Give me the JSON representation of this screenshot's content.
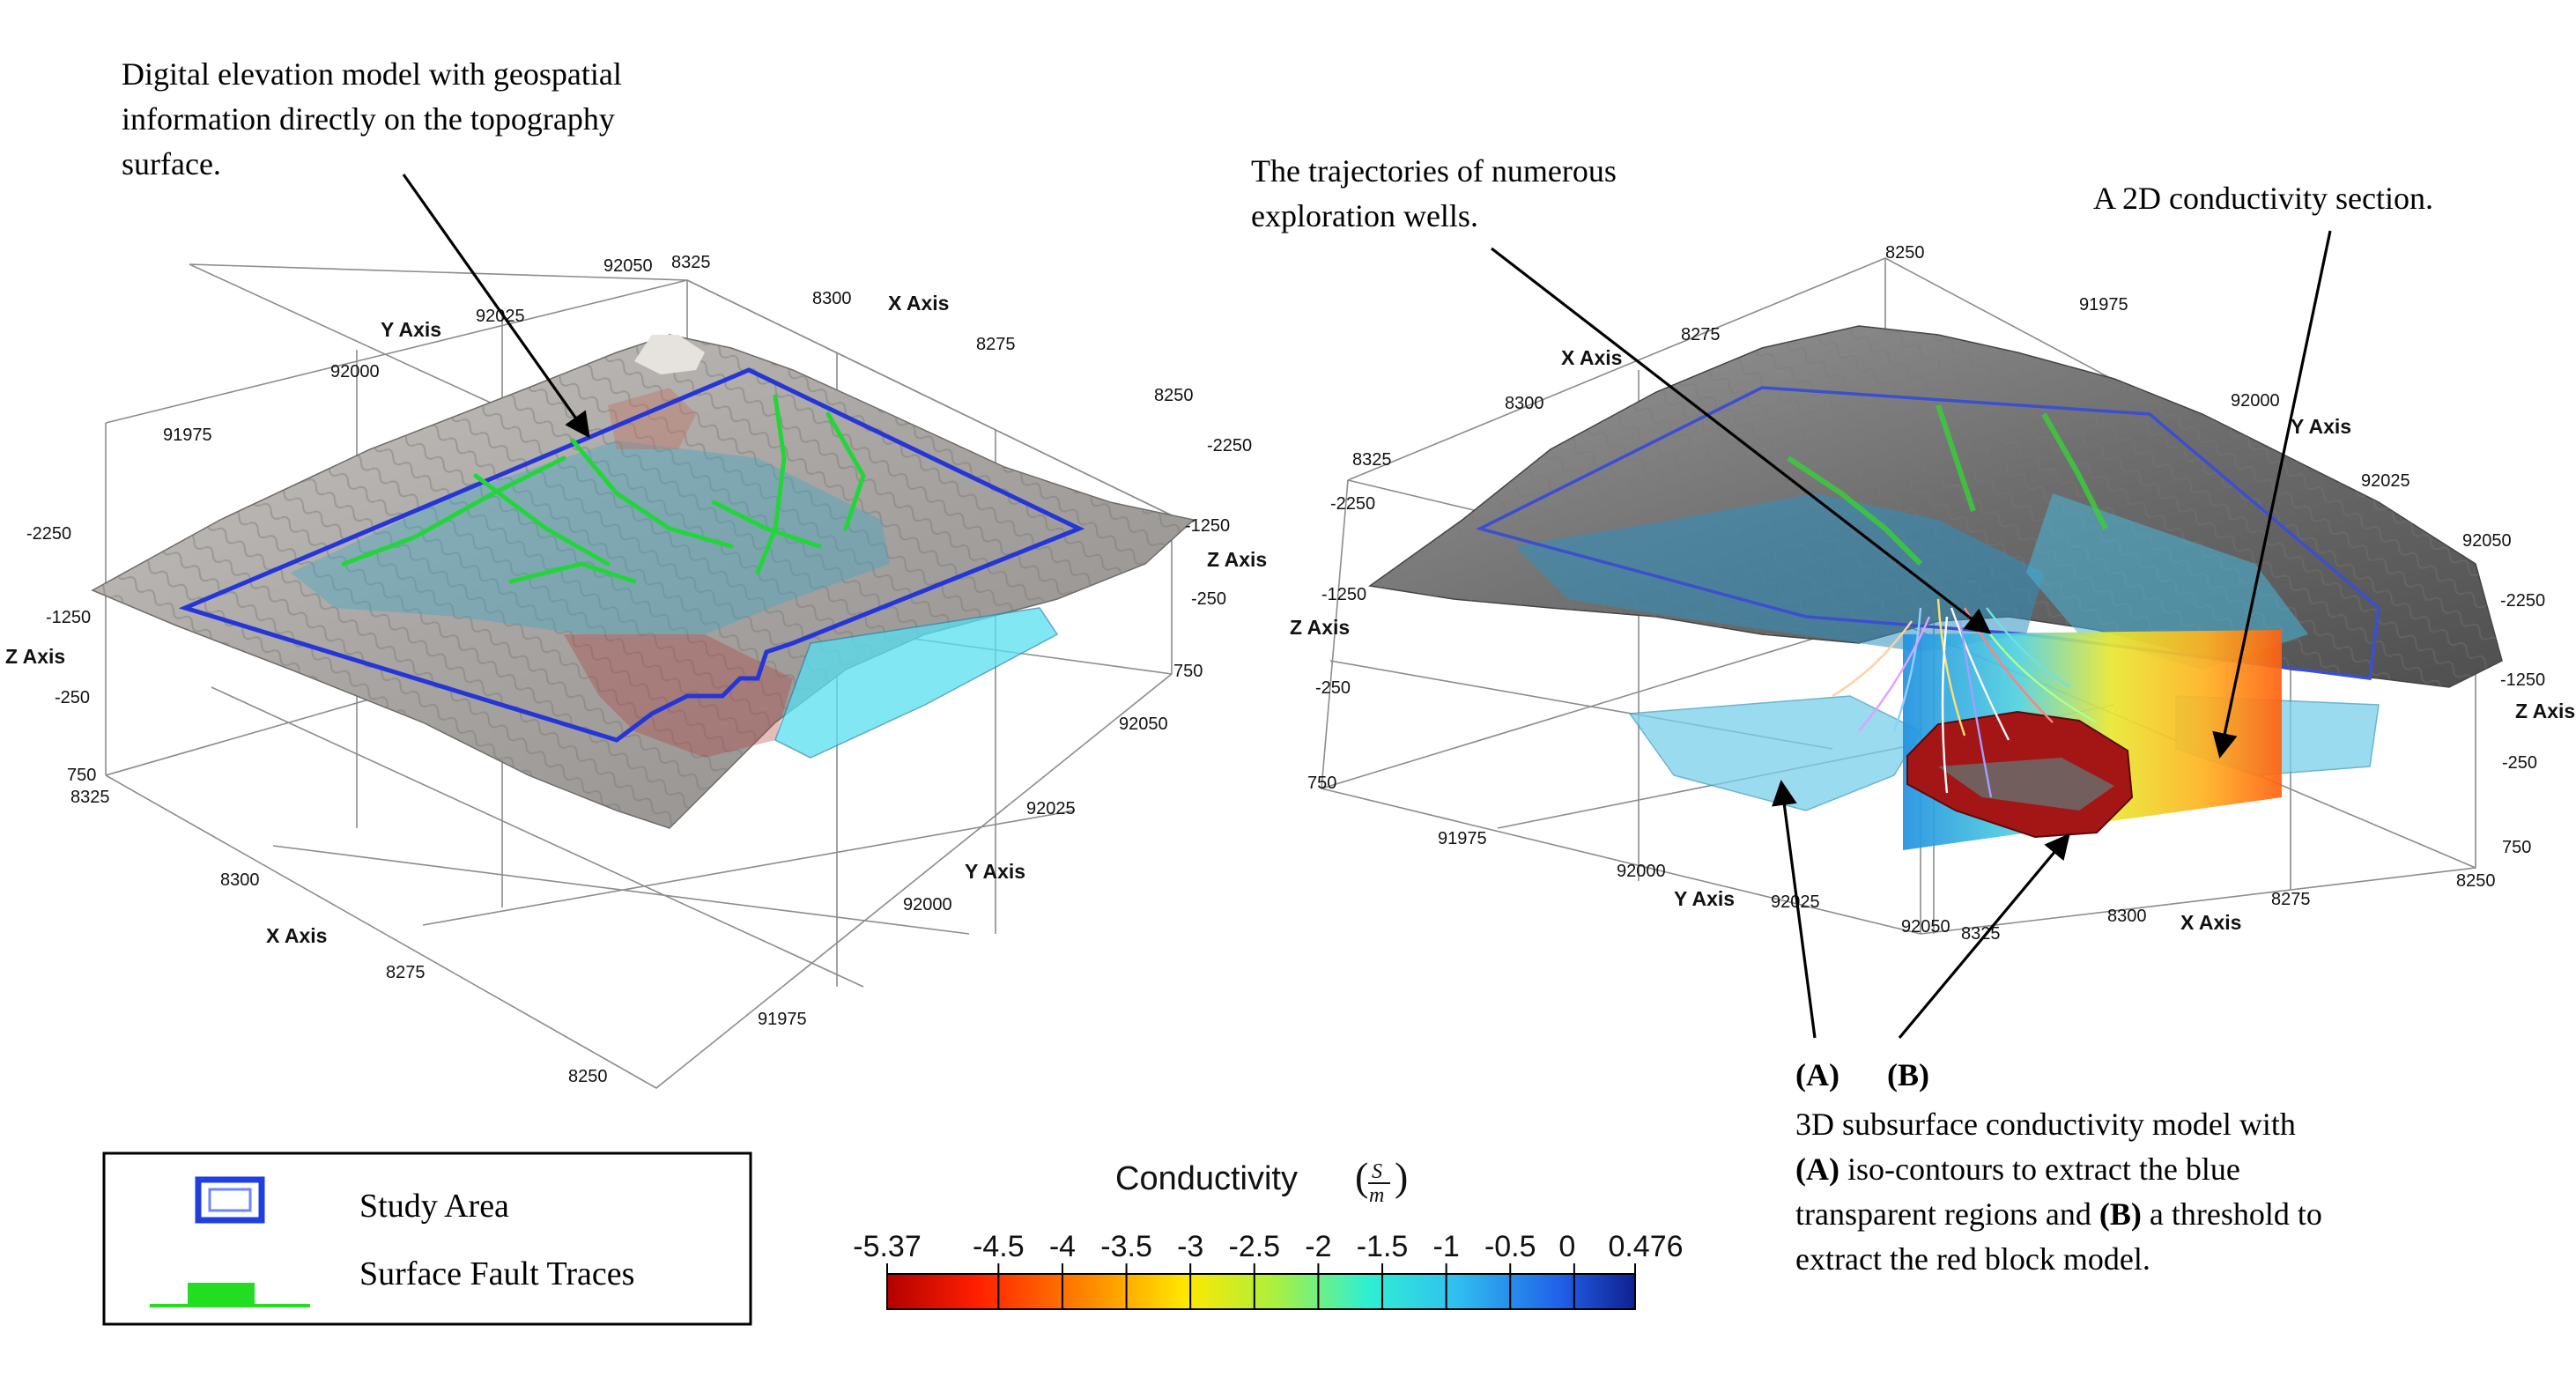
{
  "annotations": {
    "dem": [
      "Digital elevation model with geospatial",
      "information directly on the topography",
      "surface."
    ],
    "wells": [
      "The trajectories of numerous",
      "exploration wells."
    ],
    "section": "A 2D conductivity section.",
    "label_a": "(A)",
    "label_b": "(B)",
    "model": {
      "line1": "3D subsurface conductivity model with",
      "line2_bold": "(A)",
      "line2": " iso-contours to extract the blue",
      "line3_pre": "transparent regions and ",
      "line3_bold": "(B)",
      "line3_post": " a threshold to",
      "line4": "extract the red block model."
    }
  },
  "left_plot": {
    "axis_titles": {
      "x": "X Axis",
      "y": "Y Axis",
      "z": "Z Axis"
    },
    "x_ticks_top": [
      "8300",
      "8275",
      "8250"
    ],
    "y_ticks_top": [
      "92050",
      "92025",
      "92000",
      "91975"
    ],
    "top_corner": "8325",
    "z_ticks_left": [
      "-2250",
      "-1250",
      "-250",
      "750"
    ],
    "z_ticks_right": [
      "-2250",
      "-1250",
      "-250",
      "750"
    ],
    "y_ticks_right": [
      "92050",
      "92025",
      "92000",
      "91975"
    ],
    "x_ticks_bottom": [
      "8325",
      "8300",
      "8275",
      "8250"
    ]
  },
  "right_plot": {
    "axis_titles": {
      "x": "X Axis",
      "y": "Y Axis",
      "z": "Z Axis"
    },
    "x_ticks_top": [
      "8250",
      "8275",
      "8300",
      "8325"
    ],
    "y_ticks_top": [
      "91975",
      "92000",
      "92025",
      "92050"
    ],
    "z_ticks_left": [
      "-2250",
      "-1250",
      "-250",
      "750"
    ],
    "z_ticks_right": [
      "-2250",
      "-1250",
      "-250",
      "750"
    ],
    "y_ticks_bottom": [
      "91975",
      "92000",
      "92025",
      "92050"
    ],
    "x_ticks_bottom": [
      "8325",
      "8300",
      "8275",
      "8250"
    ]
  },
  "legend": {
    "items": [
      {
        "label": "Study Area",
        "color": "#1f3fe0"
      },
      {
        "label": "Surface Fault Traces",
        "color": "#22dd22"
      }
    ]
  },
  "colorbar": {
    "title": "Conductivity",
    "unit_num": "S",
    "unit_den": "m",
    "tick_labels": [
      "-5.37",
      "-4.5",
      "-4",
      "-3.5",
      "-3",
      "-2.5",
      "-2",
      "-1.5",
      "-1",
      "-0.5",
      "0",
      "0.476"
    ],
    "tick_values": [
      -5.37,
      -4.5,
      -4,
      -3.5,
      -3,
      -2.5,
      -2,
      -1.5,
      -1,
      -0.5,
      0,
      0.476
    ],
    "range": [
      -5.37,
      0.476
    ],
    "colormap": [
      "#b30000",
      "#ff2000",
      "#ff9000",
      "#ffe800",
      "#a8f040",
      "#30f0d0",
      "#30c0f0",
      "#2060e8",
      "#102090"
    ]
  }
}
